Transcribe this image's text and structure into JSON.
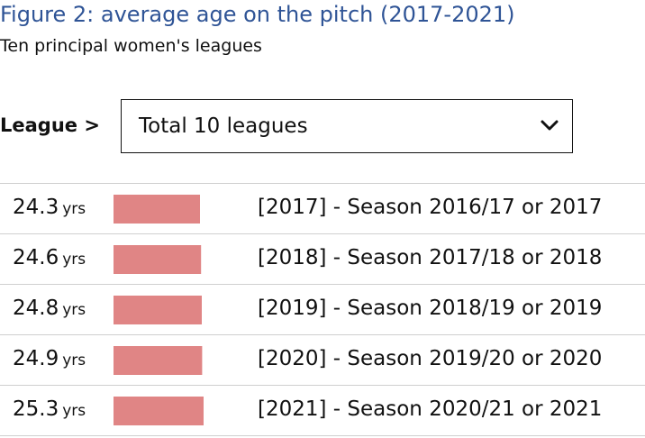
{
  "header": {
    "title": "Figure 2: average age on the pitch (2017-2021)",
    "subtitle": "Ten principal women's leagues"
  },
  "filter": {
    "label": "League >",
    "selected": "Total 10 leagues"
  },
  "colors": {
    "title": "#2f5496",
    "bar": "#e08585"
  },
  "icons": {
    "dropdown": "chevron-down-icon"
  },
  "unit_label": "yrs",
  "rows": [
    {
      "value": "24.3",
      "season": "[2017] - Season 2016/17 or 2017"
    },
    {
      "value": "24.6",
      "season": "[2018] - Season 2017/18 or 2018"
    },
    {
      "value": "24.8",
      "season": "[2019] - Season 2018/19 or 2019"
    },
    {
      "value": "24.9",
      "season": "[2020] - Season 2019/20 or 2020"
    },
    {
      "value": "25.3",
      "season": "[2021] - Season 2020/21 or 2021"
    }
  ],
  "chart_data": {
    "type": "bar",
    "title": "Figure 2: average age on the pitch (2017-2021)",
    "subtitle": "Ten principal women's leagues",
    "categories": [
      "[2017] - Season 2016/17 or 2017",
      "[2018] - Season 2017/18 or 2018",
      "[2019] - Season 2018/19 or 2019",
      "[2020] - Season 2019/20 or 2020",
      "[2021] - Season 2020/21 or 2021"
    ],
    "values": [
      24.3,
      24.6,
      24.8,
      24.9,
      25.3
    ],
    "unit": "yrs",
    "orientation": "horizontal",
    "legend": "none",
    "grid": false
  }
}
